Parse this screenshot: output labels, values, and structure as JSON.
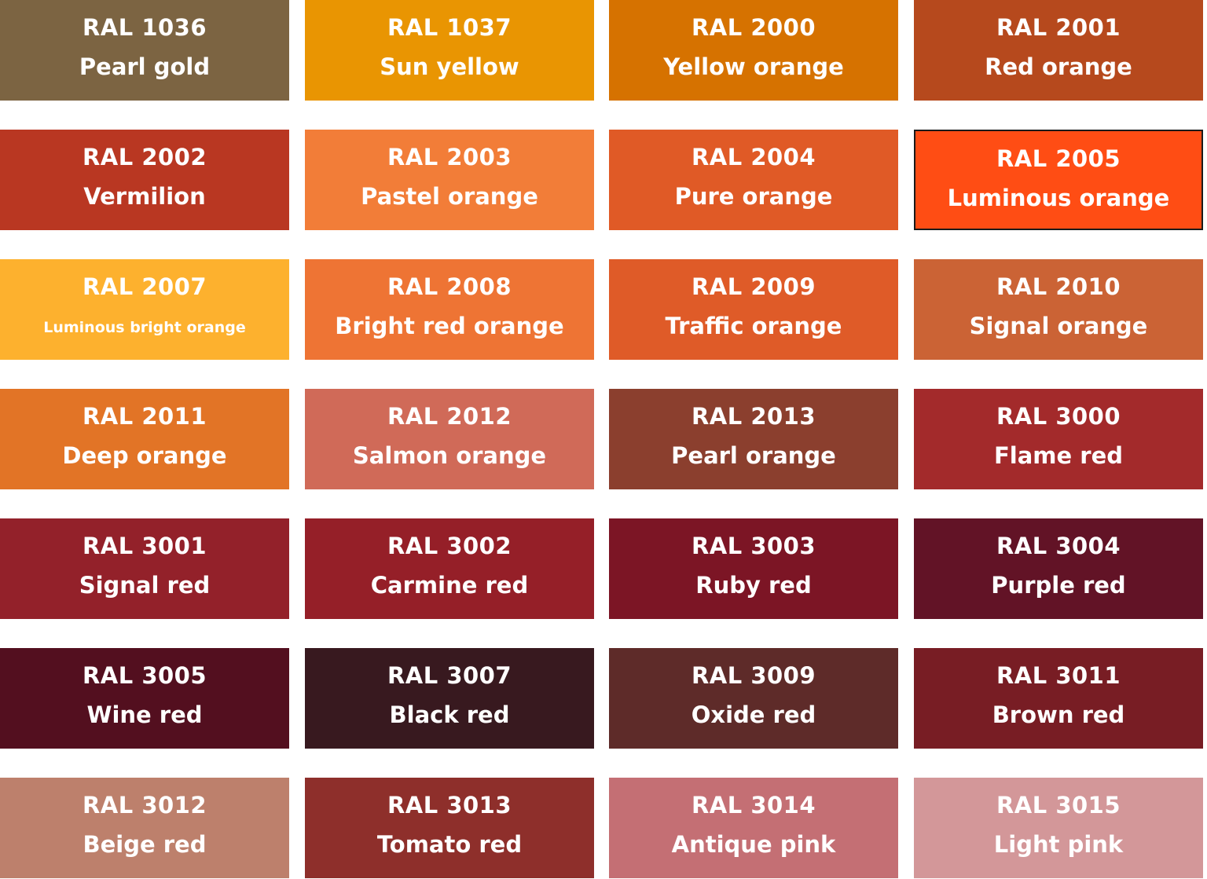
{
  "swatches": [
    {
      "code": "RAL 1036",
      "name": "Pearl gold",
      "color": "#7c6442"
    },
    {
      "code": "RAL 1037",
      "name": "Sun yellow",
      "color": "#e99502"
    },
    {
      "code": "RAL 2000",
      "name": "Yellow orange",
      "color": "#d67200"
    },
    {
      "code": "RAL 2001",
      "name": "Red orange",
      "color": "#b6491d"
    },
    {
      "code": "RAL 2002",
      "name": "Vermilion",
      "color": "#b93722"
    },
    {
      "code": "RAL 2003",
      "name": "Pastel orange",
      "color": "#f27d38"
    },
    {
      "code": "RAL 2004",
      "name": "Pure orange",
      "color": "#e05a26"
    },
    {
      "code": "RAL 2005",
      "name": "Luminous orange",
      "color": "#ff4d14",
      "selected": true
    },
    {
      "code": "RAL 2007",
      "name": "Luminous bright orange",
      "color": "#fdb12e",
      "small": true
    },
    {
      "code": "RAL 2008",
      "name": "Bright red orange",
      "color": "#ee7434"
    },
    {
      "code": "RAL 2009",
      "name": "Traffic orange",
      "color": "#df5b28"
    },
    {
      "code": "RAL 2010",
      "name": "Signal orange",
      "color": "#cb6335"
    },
    {
      "code": "RAL 2011",
      "name": "Deep orange",
      "color": "#e27426"
    },
    {
      "code": "RAL 2012",
      "name": "Salmon orange",
      "color": "#d06a58"
    },
    {
      "code": "RAL 2013",
      "name": "Pearl orange",
      "color": "#8b3f2e"
    },
    {
      "code": "RAL 3000",
      "name": "Flame red",
      "color": "#a32a2b"
    },
    {
      "code": "RAL 3001",
      "name": "Signal red",
      "color": "#93212a"
    },
    {
      "code": "RAL 3002",
      "name": "Carmine red",
      "color": "#951f28"
    },
    {
      "code": "RAL 3003",
      "name": "Ruby red",
      "color": "#7c1525"
    },
    {
      "code": "RAL 3004",
      "name": "Purple red",
      "color": "#621326"
    },
    {
      "code": "RAL 3005",
      "name": "Wine red",
      "color": "#530f1f"
    },
    {
      "code": "RAL 3007",
      "name": "Black red",
      "color": "#38191f"
    },
    {
      "code": "RAL 3009",
      "name": "Oxide red",
      "color": "#5e2b29"
    },
    {
      "code": "RAL 3011",
      "name": "Brown red",
      "color": "#781d24"
    },
    {
      "code": "RAL 3012",
      "name": "Beige red",
      "color": "#bd806c"
    },
    {
      "code": "RAL 3013",
      "name": "Tomato red",
      "color": "#8e2f2b"
    },
    {
      "code": "RAL 3014",
      "name": "Antique pink",
      "color": "#c46f74"
    },
    {
      "code": "RAL 3015",
      "name": "Light pink",
      "color": "#d39799"
    }
  ]
}
